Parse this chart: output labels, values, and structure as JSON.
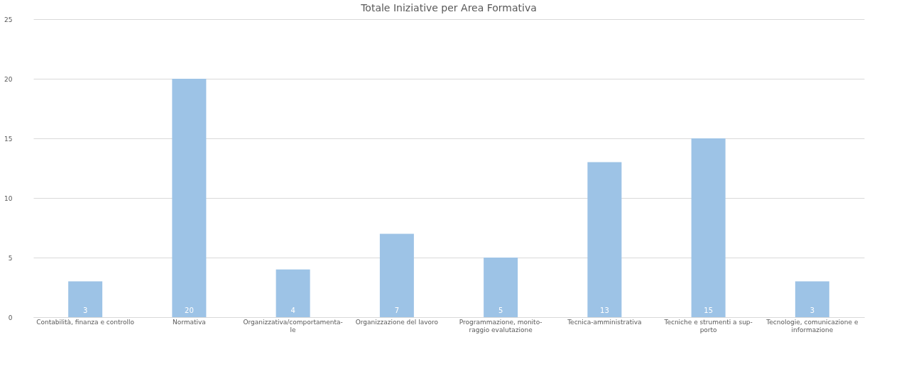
{
  "chart_data": {
    "type": "bar",
    "title": "Totale Iniziative per Area Formativa",
    "categories": [
      "Contabilità, finanza e controllo",
      "Normativa",
      "Organizzativa/comportamenta-\nle",
      "Organizzazione del lavoro",
      "Programmazione, monito-\nraggio evalutazione",
      "Tecnica-amministrativa",
      "Tecniche e strumenti a sup-\nporto",
      "Tecnologie, comunicazione e\ninformazione"
    ],
    "values": [
      3,
      20,
      4,
      7,
      5,
      13,
      15,
      3
    ],
    "color": "#9dc3e6",
    "ylim": [
      0,
      25
    ],
    "yticks": [
      0,
      5,
      10,
      15,
      20,
      25
    ],
    "grid": "y",
    "data_labels": true
  }
}
